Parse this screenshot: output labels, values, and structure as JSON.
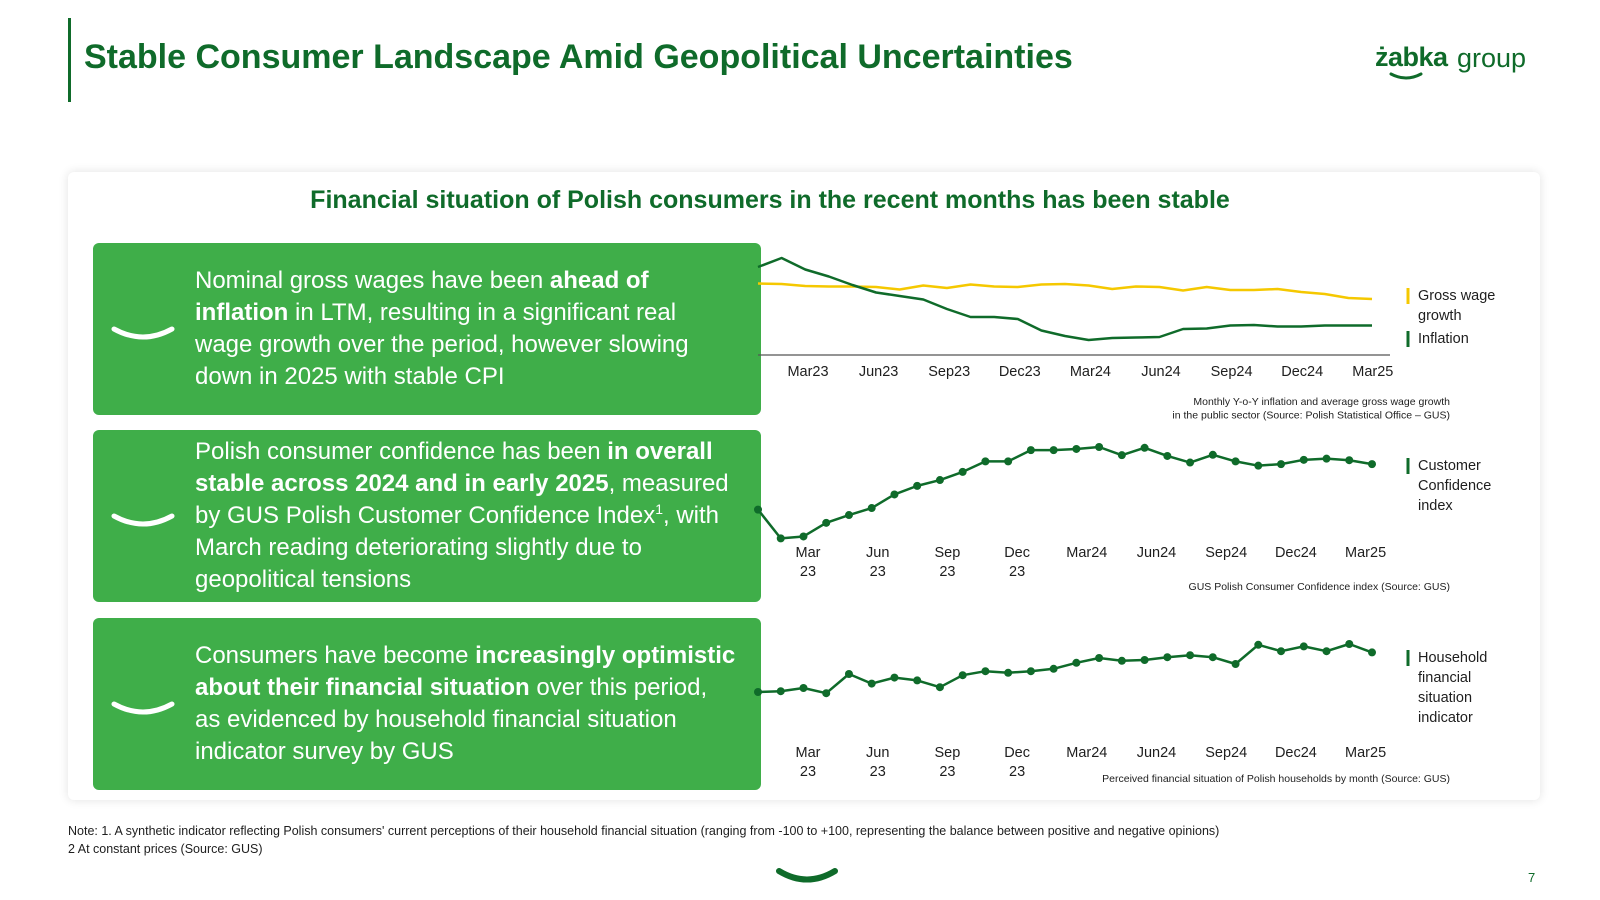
{
  "header": {
    "title": "Stable Consumer Landscape Amid Geopolitical Uncertainties",
    "logo_brand": "żabka",
    "logo_suffix": "group"
  },
  "card": {
    "title": "Financial situation of Polish consumers in the recent months has been stable"
  },
  "boxes": [
    {
      "parts": [
        {
          "t": "Nominal gross wages have been ",
          "b": false
        },
        {
          "t": "ahead of inflation",
          "b": true
        },
        {
          "t": " in LTM, resulting in a significant real wage growth over the period, however slowing down in 2025 with stable CPI",
          "b": false
        }
      ]
    },
    {
      "parts": [
        {
          "t": "Polish consumer confidence has been ",
          "b": false
        },
        {
          "t": "in overall stable across 2024 and in early 2025",
          "b": true
        },
        {
          "t": ", measured by GUS Polish Customer Confidence Index",
          "b": false
        },
        {
          "t": "1",
          "b": false,
          "sup": true
        },
        {
          "t": ", with March reading deteriorating slightly due to geopolitical tensions",
          "b": false
        }
      ]
    },
    {
      "parts": [
        {
          "t": "Consumers have become ",
          "b": false
        },
        {
          "t": "increasingly optimistic about their financial situation",
          "b": true
        },
        {
          "t": " over this period, as evidenced by household financial situation indicator survey by GUS",
          "b": false
        }
      ]
    }
  ],
  "colors": {
    "dark_green": "#0f6b2a",
    "box_green": "#3fae49",
    "yellow": "#f5c800"
  },
  "chart_data": [
    {
      "type": "line",
      "x_ticks": [
        "Mar23",
        "Jun23",
        "Sep23",
        "Dec23",
        "Mar24",
        "Jun24",
        "Sep24",
        "Dec24",
        "Mar25"
      ],
      "series": [
        {
          "name": "Gross wage growth",
          "color": "#f5c800",
          "values": [
            13.3,
            13.2,
            12.8,
            12.7,
            12.7,
            12.6,
            12.1,
            12.9,
            12.4,
            13.1,
            12.7,
            12.6,
            13.1,
            13.2,
            12.9,
            12.2,
            12.7,
            12.6,
            11.9,
            12.6,
            12.0,
            12.0,
            12.2,
            11.6,
            11.2,
            10.4,
            10.2
          ]
        },
        {
          "name": "Inflation",
          "color": "#0f6b2a",
          "values": [
            16.6,
            18.4,
            16.1,
            14.7,
            13.0,
            11.5,
            10.8,
            10.1,
            8.2,
            6.6,
            6.6,
            6.2,
            3.9,
            2.8,
            2.0,
            2.4,
            2.5,
            2.6,
            4.2,
            4.3,
            4.9,
            5.0,
            4.7,
            4.7,
            4.9,
            4.9,
            4.9
          ]
        }
      ],
      "caption": "Monthly Y-o-Y inflation and average gross wage growth\nin the public sector (Source: Polish Statistical Office – GUS)"
    },
    {
      "type": "line",
      "x_ticks": [
        "Mar\n23",
        "Jun\n23",
        "Sep\n23",
        "Dec\n23",
        "Mar24",
        "Jun24",
        "Sep24",
        "Dec24",
        "Mar25"
      ],
      "series": [
        {
          "name": "Customer Confidence index",
          "color": "#0f6b2a",
          "values": [
            -34.9,
            -42.3,
            -41.8,
            -38.3,
            -36.3,
            -34.5,
            -31.0,
            -28.8,
            -27.3,
            -25.2,
            -22.5,
            -22.5,
            -19.6,
            -19.6,
            -19.3,
            -18.8,
            -20.9,
            -19.0,
            -21.1,
            -22.8,
            -20.8,
            -22.5,
            -23.6,
            -23.2,
            -22.1,
            -21.8,
            -22.2,
            -23.2
          ]
        }
      ],
      "caption": "GUS Polish Consumer Confidence index (Source: GUS)"
    },
    {
      "type": "line",
      "x_ticks": [
        "Mar\n23",
        "Jun\n23",
        "Sep\n23",
        "Dec\n23",
        "Mar24",
        "Jun24",
        "Sep24",
        "Dec24",
        "Mar25"
      ],
      "series": [
        {
          "name": "Household financial situation indicator",
          "color": "#0f6b2a",
          "values": [
            -26.0,
            -25.8,
            -25.0,
            -26.3,
            -21.5,
            -23.9,
            -22.4,
            -23.1,
            -24.8,
            -21.8,
            -20.8,
            -21.2,
            -20.8,
            -20.2,
            -18.7,
            -17.5,
            -18.2,
            -18.0,
            -17.3,
            -16.8,
            -17.3,
            -19.0,
            -14.2,
            -15.8,
            -14.6,
            -15.8,
            -14.0,
            -16.1
          ]
        }
      ],
      "caption": "Perceived financial situation of Polish households by month (Source: GUS)"
    }
  ],
  "note": {
    "line1": "Note: 1. A synthetic indicator reflecting Polish consumers' current perceptions of their household financial situation (ranging from -100 to +100, representing the balance between positive and negative opinions)",
    "line2": "2 At constant prices (Source: GUS)"
  },
  "page_number": "7"
}
